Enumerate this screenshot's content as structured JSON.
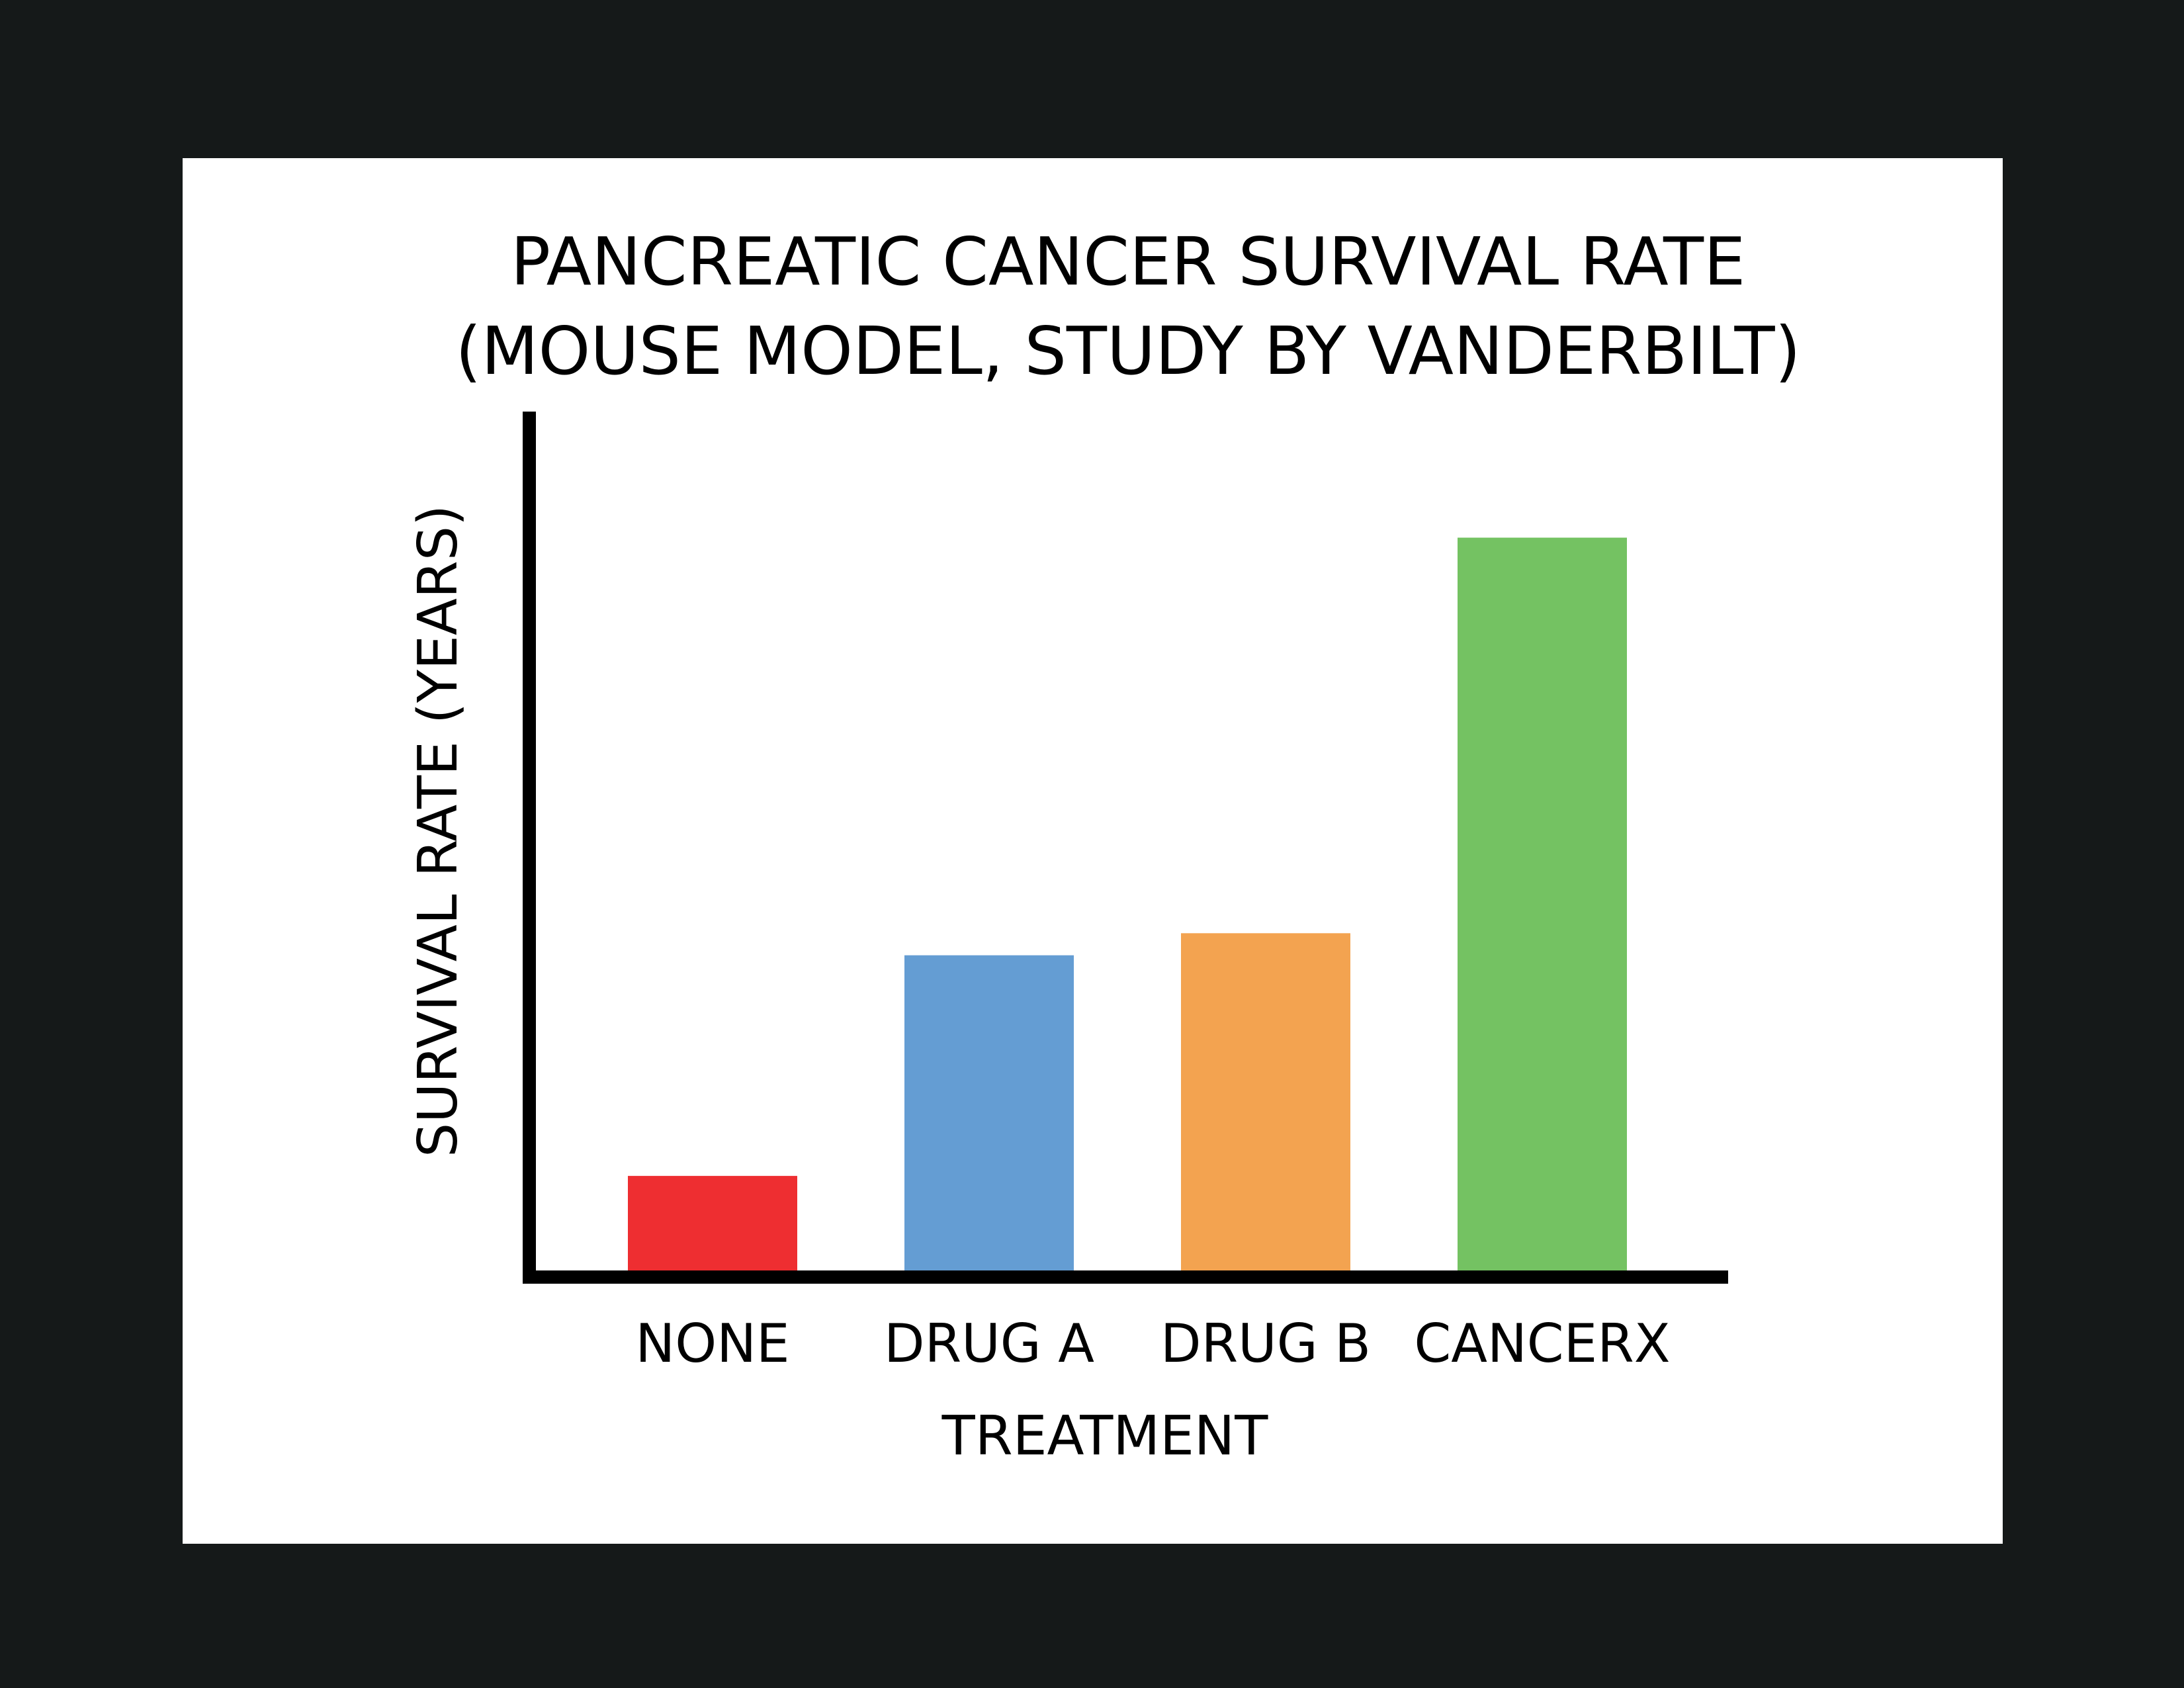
{
  "chart_data": {
    "type": "bar",
    "title": "PANCREATIC CANCER SURVIVAL RATE",
    "subtitle": "(MOUSE MODEL, STUDY BY VANDERBILT)",
    "xlabel": "TREATMENT",
    "ylabel": "SURVIVAL RATE (YEARS)",
    "categories": [
      "NONE",
      "DRUG A",
      "DRUG B",
      "CANCERX"
    ],
    "values": [
      0.6,
      2.0,
      2.14,
      4.65
    ],
    "colors": [
      "#ee2e31",
      "#649dd3",
      "#f3a350",
      "#74c262"
    ],
    "ylim": [
      0,
      5.45
    ],
    "grid": false,
    "legend": "none"
  }
}
